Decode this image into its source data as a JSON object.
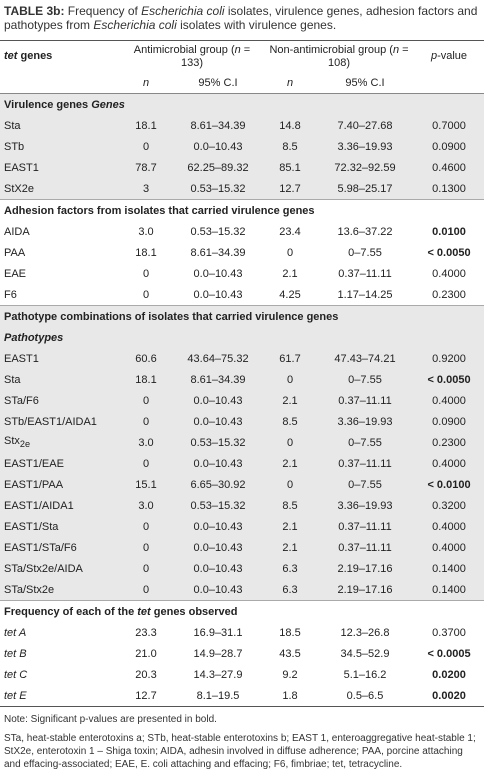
{
  "title": {
    "label": "TABLE 3b:",
    "parts": [
      "Frequency of ",
      "Escherichia coli",
      " isolates, virulence genes, adhesion factors and pathotypes from ",
      "Escherichia coli",
      " isolates with virulence genes."
    ]
  },
  "header": {
    "genes": [
      "tet",
      " genes"
    ],
    "group1": [
      "Antimicrobial group (",
      "n",
      " = 133)"
    ],
    "group2": [
      "Non-antimicrobial group (",
      "n",
      " = 108)"
    ],
    "pvalue": [
      "p",
      "-value"
    ],
    "sub": [
      "n",
      "95% C.I",
      "n",
      "95% C.I"
    ]
  },
  "sections": [
    {
      "heading": [
        "Virulence genes ",
        "Genes"
      ],
      "rows": [
        {
          "label": "Sta",
          "cells": [
            "18.1",
            "8.61–34.39",
            "14.8",
            "7.40–27.68",
            "0.7000"
          ]
        },
        {
          "label": "STb",
          "cells": [
            "0",
            "0.0–10.43",
            "8.5",
            "3.36–19.93",
            "0.0900"
          ]
        },
        {
          "label": "EAST1",
          "cells": [
            "78.7",
            "62.25–89.32",
            "85.1",
            "72.32–92.59",
            "0.4600"
          ]
        },
        {
          "label": "StX2e",
          "cells": [
            "3",
            "0.53–15.32",
            "12.7",
            "5.98–25.17",
            "0.1300"
          ]
        }
      ]
    },
    {
      "heading": [
        "Adhesion factors from isolates that carried virulence genes"
      ],
      "rows": [
        {
          "label": "AIDA",
          "cells": [
            "3.0",
            "0.53–15.32",
            "23.4",
            "13.6–37.22",
            "0.0100"
          ],
          "bold": true
        },
        {
          "label": "PAA",
          "cells": [
            "18.1",
            "8.61–34.39",
            "0",
            "0–7.55",
            "< 0.0050"
          ],
          "bold": true
        },
        {
          "label": "EAE",
          "cells": [
            "0",
            "0.0–10.43",
            "2.1",
            "0.37–11.11",
            "0.4000"
          ]
        },
        {
          "label": "F6",
          "cells": [
            "0",
            "0.0–10.43",
            "4.25",
            "1.17–14.25",
            "0.2300"
          ]
        }
      ]
    },
    {
      "heading": [
        "Pathotype combinations of isolates that carried virulence genes"
      ],
      "subheading": "Pathotypes",
      "rows": [
        {
          "label": "EAST1",
          "cells": [
            "60.6",
            "43.64–75.32",
            "61.7",
            "47.43–74.21",
            "0.9200"
          ]
        },
        {
          "label": "Sta",
          "cells": [
            "18.1",
            "8.61–34.39",
            "0",
            "0–7.55",
            "< 0.0050"
          ],
          "bold": true
        },
        {
          "label": "STa/F6",
          "cells": [
            "0",
            "0.0–10.43",
            "2.1",
            "0.37–11.11",
            "0.4000"
          ]
        },
        {
          "label": "STb/EAST1/AIDA1",
          "cells": [
            "0",
            "0.0–10.43",
            "8.5",
            "3.36–19.93",
            "0.0900"
          ]
        },
        {
          "label": [
            "Stx",
            "2e"
          ],
          "cells": [
            "3.0",
            "0.53–15.32",
            "0",
            "0–7.55",
            "0.2300"
          ]
        },
        {
          "label": "EAST1/EAE",
          "cells": [
            "0",
            "0.0–10.43",
            "2.1",
            "0.37–11.11",
            "0.4000"
          ]
        },
        {
          "label": "EAST1/PAA",
          "cells": [
            "15.1",
            "6.65–30.92",
            "0",
            "0–7.55",
            "< 0.0100"
          ],
          "bold": true
        },
        {
          "label": "EAST1/AIDA1",
          "cells": [
            "3.0",
            "0.53–15.32",
            "8.5",
            "3.36–19.93",
            "0.3200"
          ]
        },
        {
          "label": "EAST1/Sta",
          "cells": [
            "0",
            "0.0–10.43",
            "2.1",
            "0.37–11.11",
            "0.4000"
          ]
        },
        {
          "label": "EAST1/STa/F6",
          "cells": [
            "0",
            "0.0–10.43",
            "2.1",
            "0.37–11.11",
            "0.4000"
          ]
        },
        {
          "label": "STa/Stx2e/AIDA",
          "cells": [
            "0",
            "0.0–10.43",
            "6.3",
            "2.19–17.16",
            "0.1400"
          ]
        },
        {
          "label": "STa/Stx2e",
          "cells": [
            "0",
            "0.0–10.43",
            "6.3",
            "2.19–17.16",
            "0.1400"
          ]
        }
      ]
    },
    {
      "heading": [
        "Frequency of each of the ",
        "tet",
        " genes observed"
      ],
      "rows": [
        {
          "label": "tet A",
          "cells": [
            "23.3",
            "16.9–31.1",
            "18.5",
            "12.3–26.8",
            "0.3700"
          ]
        },
        {
          "label": "tet B",
          "cells": [
            "21.0",
            "14.9–28.7",
            "43.5",
            "34.5–52.9",
            "< 0.0005"
          ],
          "bold": true
        },
        {
          "label": "tet C",
          "cells": [
            "20.3",
            "14.3–27.9",
            "9.2",
            "5.1–16.2",
            "0.0200"
          ],
          "bold": true
        },
        {
          "label": "tet E",
          "cells": [
            "12.7",
            "8.1–19.5",
            "1.8",
            "0.5–6.5",
            "0.0020"
          ],
          "bold": true
        }
      ]
    }
  ],
  "notes": [
    "Note: Significant p-values are presented in bold.",
    "STa, heat-stable enterotoxins a; STb, heat-stable enterotoxins b; EAST 1, enteroaggregative heat-stable 1; StX2e, enterotoxin 1 – Shiga toxin; AIDA, adhesin involved in diffuse adherence; PAA, porcine attaching and effacing-associated; EAE, E. coli attaching and effacing; F6, fimbriae; tet, tetracycline."
  ]
}
